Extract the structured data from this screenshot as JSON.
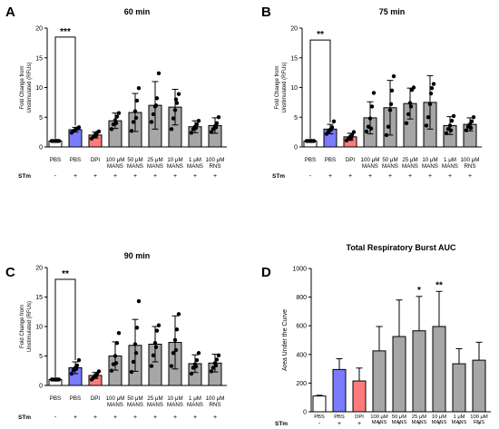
{
  "colors": {
    "pbs_unstim": "#ffffff",
    "pbs_stim": "#7b7bff",
    "dpi": "#ff7b7b",
    "treatment": "#a6a6a6",
    "auc_treatment": "#a6a6a6",
    "stroke": "#000000"
  },
  "stm_label": "STm",
  "stm_signs": [
    "-",
    "+",
    "+",
    "+",
    "+",
    "+",
    "+",
    "+",
    "+"
  ],
  "categories": [
    "PBS",
    "PBS",
    "DPI",
    "100 μM MANS",
    "50 μM MANS",
    "25 μM MANS",
    "10 μM MANS",
    "1 μM MANS",
    "100 μM RNS"
  ],
  "chart_data": [
    {
      "panel": "A",
      "type": "bar",
      "title": "60 min",
      "ylabel": "Fold Change from Unstimulated (RFUs)",
      "ylim": [
        0,
        20
      ],
      "yticks": [
        0,
        5,
        10,
        15,
        20
      ],
      "categories": [
        "PBS",
        "PBS",
        "DPI",
        "100 μM MANS",
        "50 μM MANS",
        "25 μM MANS",
        "10 μM MANS",
        "1 μM MANS",
        "100 μM RNS"
      ],
      "values": [
        1.0,
        2.9,
        2.0,
        4.4,
        5.8,
        7.0,
        6.7,
        3.4,
        3.6
      ],
      "errors": [
        0.1,
        0.4,
        0.5,
        1.3,
        3.2,
        4.0,
        3.0,
        1.0,
        1.3
      ],
      "points": [
        [
          1.0,
          1.0,
          1.0,
          1.0,
          1.0,
          1.0
        ],
        [
          2.4,
          2.7,
          2.9,
          3.1,
          3.3,
          3.0
        ],
        [
          1.4,
          1.7,
          2.1,
          2.4,
          2.6,
          1.9
        ],
        [
          3.0,
          3.8,
          4.5,
          5.1,
          5.7,
          4.0
        ],
        [
          2.7,
          4.2,
          6.0,
          7.8,
          9.9,
          4.9
        ],
        [
          4.2,
          5.5,
          6.8,
          8.2,
          12.4,
          7.0
        ],
        [
          3.0,
          4.8,
          6.2,
          7.4,
          8.9,
          8.0
        ],
        [
          2.4,
          3.0,
          3.4,
          3.8,
          4.4,
          3.2
        ],
        [
          2.5,
          3.0,
          3.5,
          4.0,
          5.0,
          3.3
        ]
      ],
      "significance": [
        {
          "label": "***",
          "from": 0,
          "to": 1
        }
      ]
    },
    {
      "panel": "B",
      "type": "bar",
      "title": "75 min",
      "ylabel": "Fold Change from Unstimulated (RFUs)",
      "ylim": [
        0,
        20
      ],
      "yticks": [
        0,
        5,
        10,
        15,
        20
      ],
      "categories": [
        "PBS",
        "PBS",
        "DPI",
        "100 μM MANS",
        "50 μM MANS",
        "25 μM MANS",
        "10 μM MANS",
        "1 μM MANS",
        "100 μM RNS"
      ],
      "values": [
        1.0,
        3.0,
        1.7,
        4.9,
        6.6,
        7.3,
        7.5,
        3.6,
        3.8
      ],
      "errors": [
        0.1,
        0.8,
        0.6,
        2.7,
        4.6,
        2.6,
        4.5,
        1.5,
        1.1
      ],
      "points": [
        [
          1.0,
          1.0,
          1.0,
          1.0,
          1.0,
          1.0
        ],
        [
          2.2,
          2.6,
          2.9,
          3.3,
          4.3,
          2.9
        ],
        [
          1.1,
          1.4,
          1.7,
          2.0,
          2.5,
          1.5
        ],
        [
          2.6,
          3.4,
          4.8,
          6.8,
          9.1,
          3.1
        ],
        [
          2.0,
          3.4,
          6.2,
          9.5,
          11.9,
          7.2
        ],
        [
          4.0,
          5.5,
          7.4,
          9.6,
          10.0,
          6.8
        ],
        [
          3.6,
          5.0,
          7.2,
          9.9,
          10.6,
          9.0
        ],
        [
          2.3,
          3.0,
          3.6,
          4.4,
          5.2,
          2.8
        ],
        [
          2.8,
          3.4,
          3.8,
          4.3,
          5.0,
          3.2
        ]
      ],
      "significance": [
        {
          "label": "**",
          "from": 0,
          "to": 1
        }
      ]
    },
    {
      "panel": "C",
      "type": "bar",
      "title": "90 min",
      "ylabel": "Fold Change from Unstimulated (RFUs)",
      "ylim": [
        0,
        20
      ],
      "yticks": [
        0,
        5,
        10,
        15,
        20
      ],
      "categories": [
        "PBS",
        "PBS",
        "DPI",
        "100 μM MANS",
        "50 μM MANS",
        "25 μM MANS",
        "10 μM MANS",
        "1 μM MANS",
        "100 μM RNS"
      ],
      "values": [
        1.0,
        3.0,
        1.7,
        5.0,
        6.8,
        7.0,
        7.3,
        3.7,
        3.8
      ],
      "errors": [
        0.1,
        1.0,
        0.5,
        2.4,
        4.4,
        3.0,
        4.5,
        1.5,
        1.5
      ],
      "points": [
        [
          1.0,
          1.0,
          1.0,
          1.0,
          1.0,
          1.0
        ],
        [
          2.0,
          2.6,
          3.0,
          3.4,
          4.3,
          2.8
        ],
        [
          1.0,
          1.3,
          1.7,
          2.0,
          2.4,
          1.6
        ],
        [
          2.5,
          3.6,
          5.0,
          7.2,
          8.9,
          3.8
        ],
        [
          2.3,
          4.0,
          7.0,
          9.8,
          14.3,
          5.5
        ],
        [
          3.3,
          5.1,
          7.2,
          9.3,
          10.2,
          6.5
        ],
        [
          3.3,
          5.5,
          7.7,
          9.5,
          12.1,
          6.0
        ],
        [
          2.0,
          3.0,
          3.6,
          4.3,
          5.5,
          3.2
        ],
        [
          2.4,
          3.0,
          3.8,
          4.4,
          5.1,
          3.4
        ]
      ],
      "significance": [
        {
          "label": "**",
          "from": 0,
          "to": 1
        }
      ]
    },
    {
      "panel": "D",
      "type": "bar",
      "title": "Total Respiratory Burst AUC",
      "ylabel": "Area Under the Curve",
      "ylim": [
        0,
        1000
      ],
      "yticks": [
        0,
        200,
        400,
        600,
        800,
        1000
      ],
      "categories": [
        "PBS",
        "PBS",
        "DPI",
        "100 μM MANS",
        "50 μM MANS",
        "25 μM MANS",
        "10 μM MANS",
        "1 μM MANS",
        "100 μM RNS"
      ],
      "values": [
        110,
        295,
        215,
        425,
        525,
        565,
        595,
        335,
        360
      ],
      "errors": [
        5,
        75,
        90,
        170,
        255,
        240,
        245,
        105,
        125
      ],
      "significance_labels": [
        "",
        "",
        "",
        "",
        "",
        "*",
        "**",
        "",
        ""
      ]
    }
  ]
}
